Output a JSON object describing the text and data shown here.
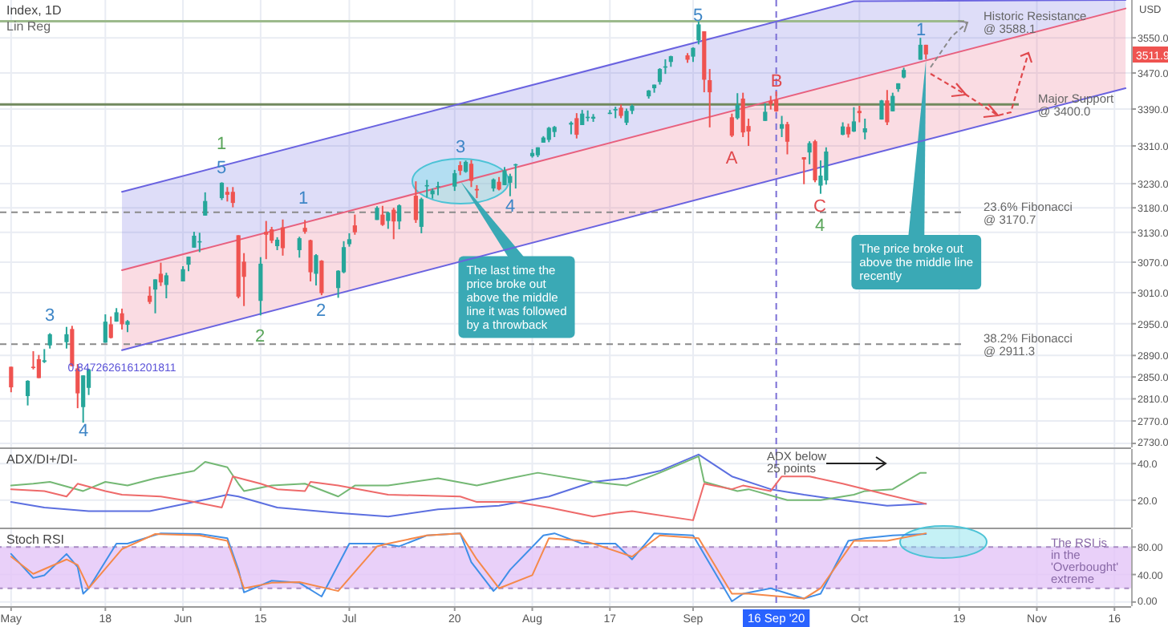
{
  "chart_data": [
    {
      "type": "candlestick",
      "title": "Index, 1D",
      "ylabel": "USD",
      "log": true,
      "grid": true,
      "tick_labels": "y",
      "xlim": [
        "2020-04-29",
        "2020-11-19"
      ],
      "xticks": [
        {
          "value": "2020-05-01",
          "label": null
        },
        {
          "value": "2020-05-18",
          "label": null
        },
        {
          "value": "2020-06-01",
          "label": null
        },
        {
          "value": "2020-06-15",
          "label": null
        },
        {
          "value": "2020-07-01",
          "label": null
        },
        {
          "value": "2020-07-20",
          "label": null
        },
        {
          "value": "2020-08-03",
          "label": null
        },
        {
          "value": "2020-08-17",
          "label": null
        },
        {
          "value": "2020-09-01",
          "label": null
        },
        {
          "value": "2020-10-01",
          "label": null
        },
        {
          "value": "2020-10-19",
          "label": null
        },
        {
          "value": "2020-11-02",
          "label": null
        },
        {
          "value": "2020-11-16",
          "label": null
        }
      ],
      "ylim": [
        2723,
        3638
      ],
      "yticks": [
        {
          "value": 2730,
          "label": "2730.0"
        },
        {
          "value": 2770,
          "label": "2770.0"
        },
        {
          "value": 2810,
          "label": "2810.0"
        },
        {
          "value": 2850,
          "label": "2850.0"
        },
        {
          "value": 2890,
          "label": "2890.0"
        },
        {
          "value": 2950,
          "label": "2950.0"
        },
        {
          "value": 3010,
          "label": "3010.0"
        },
        {
          "value": 3070,
          "label": "3070.0"
        },
        {
          "value": 3130,
          "label": "3130.0"
        },
        {
          "value": 3180,
          "label": "3180.0"
        },
        {
          "value": 3230,
          "label": "3230.0"
        },
        {
          "value": 3310,
          "label": "3310.0"
        },
        {
          "value": 3390,
          "label": "3390.0"
        },
        {
          "value": 3470,
          "label": "3470.0"
        },
        {
          "value": 3550,
          "label": "3550.0"
        }
      ],
      "x": [
        "2020-05-01",
        "2020-05-04",
        "2020-05-05",
        "2020-05-06",
        "2020-05-07",
        "2020-05-08",
        "2020-05-11",
        "2020-05-12",
        "2020-05-13",
        "2020-05-14",
        "2020-05-15",
        "2020-05-18",
        "2020-05-19",
        "2020-05-20",
        "2020-05-21",
        "2020-05-22",
        "2020-05-26",
        "2020-05-27",
        "2020-05-28",
        "2020-05-29",
        "2020-06-01",
        "2020-06-02",
        "2020-06-03",
        "2020-06-04",
        "2020-06-05",
        "2020-06-08",
        "2020-06-09",
        "2020-06-10",
        "2020-06-11",
        "2020-06-12",
        "2020-06-15",
        "2020-06-16",
        "2020-06-17",
        "2020-06-18",
        "2020-06-19",
        "2020-06-22",
        "2020-06-23",
        "2020-06-24",
        "2020-06-25",
        "2020-06-26",
        "2020-06-29",
        "2020-06-30",
        "2020-07-01",
        "2020-07-02",
        "2020-07-06",
        "2020-07-07",
        "2020-07-08",
        "2020-07-09",
        "2020-07-10",
        "2020-07-13",
        "2020-07-14",
        "2020-07-15",
        "2020-07-16",
        "2020-07-17",
        "2020-07-20",
        "2020-07-21",
        "2020-07-22",
        "2020-07-23",
        "2020-07-24",
        "2020-07-27",
        "2020-07-28",
        "2020-07-29",
        "2020-07-30",
        "2020-07-31",
        "2020-08-03",
        "2020-08-04",
        "2020-08-05",
        "2020-08-06",
        "2020-08-07",
        "2020-08-10",
        "2020-08-11",
        "2020-08-12",
        "2020-08-13",
        "2020-08-14",
        "2020-08-17",
        "2020-08-18",
        "2020-08-19",
        "2020-08-20",
        "2020-08-21",
        "2020-08-24",
        "2020-08-25",
        "2020-08-26",
        "2020-08-27",
        "2020-08-28",
        "2020-08-31",
        "2020-09-01",
        "2020-09-02",
        "2020-09-03",
        "2020-09-04",
        "2020-09-08",
        "2020-09-09",
        "2020-09-10",
        "2020-09-11",
        "2020-09-14",
        "2020-09-15",
        "2020-09-16",
        "2020-09-17",
        "2020-09-18",
        "2020-09-21",
        "2020-09-22",
        "2020-09-23",
        "2020-09-24",
        "2020-09-25",
        "2020-09-28",
        "2020-09-29",
        "2020-09-30",
        "2020-10-01",
        "2020-10-02",
        "2020-10-05",
        "2020-10-06",
        "2020-10-07",
        "2020-10-08",
        "2020-10-09",
        "2020-10-12",
        "2020-10-13"
      ],
      "ohlc": [
        [
          2869,
          2869,
          2822,
          2831
        ],
        [
          2815,
          2844,
          2798,
          2843
        ],
        [
          2869,
          2898,
          2864,
          2868
        ],
        [
          2883,
          2891,
          2848,
          2848
        ],
        [
          2878,
          2902,
          2876,
          2881
        ],
        [
          2909,
          2932,
          2903,
          2930
        ],
        [
          2915,
          2944,
          2903,
          2930
        ],
        [
          2940,
          2946,
          2870,
          2870
        ],
        [
          2866,
          2874,
          2793,
          2820
        ],
        [
          2795,
          2853,
          2767,
          2853
        ],
        [
          2830,
          2865,
          2817,
          2864
        ],
        [
          2914,
          2968,
          2914,
          2954
        ],
        [
          2949,
          2964,
          2922,
          2923
        ],
        [
          2954,
          2980,
          2954,
          2972
        ],
        [
          2970,
          2979,
          2939,
          2949
        ],
        [
          2948,
          2957,
          2934,
          2955
        ],
        [
          3004,
          3022,
          2988,
          2992
        ],
        [
          3016,
          3036,
          2970,
          3036
        ],
        [
          3047,
          3069,
          3023,
          3030
        ],
        [
          3025,
          3049,
          2999,
          3044
        ],
        [
          3032,
          3062,
          3032,
          3056
        ],
        [
          3065,
          3081,
          3052,
          3081
        ],
        [
          3099,
          3131,
          3099,
          3123
        ],
        [
          3112,
          3129,
          3090,
          3112
        ],
        [
          3164,
          3212,
          3164,
          3194
        ],
        [
          3200,
          3233,
          3196,
          3232
        ],
        [
          3213,
          3223,
          3193,
          3207
        ],
        [
          3213,
          3223,
          3181,
          3190
        ],
        [
          3124,
          3124,
          2999,
          3002
        ],
        [
          3071,
          3088,
          2984,
          3041
        ],
        [
          2994,
          3080,
          2966,
          3067
        ],
        [
          3131,
          3153,
          3076,
          3125
        ],
        [
          3136,
          3141,
          3108,
          3113
        ],
        [
          3102,
          3120,
          3094,
          3115
        ],
        [
          3140,
          3156,
          3083,
          3098
        ],
        [
          3094,
          3121,
          3079,
          3118
        ],
        [
          3139,
          3155,
          3127,
          3131
        ],
        [
          3114,
          3115,
          3032,
          3050
        ],
        [
          3047,
          3086,
          3024,
          3084
        ],
        [
          3073,
          3074,
          3005,
          3009
        ],
        [
          3019,
          3054,
          3000,
          3053
        ],
        [
          3050,
          3112,
          3048,
          3100
        ],
        [
          3106,
          3128,
          3101,
          3116
        ],
        [
          3144,
          3166,
          3125,
          3130
        ],
        [
          3155,
          3183,
          3155,
          3180
        ],
        [
          3166,
          3184,
          3143,
          3145
        ],
        [
          3153,
          3172,
          3137,
          3170
        ],
        [
          3176,
          3180,
          3116,
          3152
        ],
        [
          3152,
          3187,
          3136,
          3185
        ],
        [
          3205,
          3235,
          3149,
          3155
        ],
        [
          3141,
          3201,
          3128,
          3198
        ],
        [
          3226,
          3238,
          3201,
          3227
        ],
        [
          3208,
          3220,
          3199,
          3216
        ],
        [
          3224,
          3234,
          3206,
          3225
        ],
        [
          3224,
          3259,
          3215,
          3252
        ],
        [
          3269,
          3277,
          3248,
          3257
        ],
        [
          3255,
          3279,
          3253,
          3276
        ],
        [
          3272,
          3280,
          3223,
          3236
        ],
        [
          3219,
          3227,
          3200,
          3216
        ],
        [
          3220,
          3241,
          3214,
          3239
        ],
        [
          3234,
          3244,
          3216,
          3218
        ],
        [
          3227,
          3265,
          3227,
          3258
        ],
        [
          3232,
          3251,
          3204,
          3246
        ],
        [
          3270,
          3272,
          3220,
          3271
        ],
        [
          3288,
          3303,
          3285,
          3295
        ],
        [
          3290,
          3307,
          3286,
          3307
        ],
        [
          3317,
          3331,
          3317,
          3328
        ],
        [
          3323,
          3351,
          3318,
          3349
        ],
        [
          3340,
          3353,
          3329,
          3351
        ],
        [
          3356,
          3363,
          3335,
          3360
        ],
        [
          3370,
          3381,
          3326,
          3334
        ],
        [
          3355,
          3388,
          3355,
          3380
        ],
        [
          3373,
          3387,
          3363,
          3373
        ],
        [
          3369,
          3379,
          3362,
          3373
        ],
        [
          3381,
          3388,
          3379,
          3382
        ],
        [
          3387,
          3395,
          3370,
          3390
        ],
        [
          3393,
          3400,
          3370,
          3375
        ],
        [
          3360,
          3391,
          3355,
          3386
        ],
        [
          3386,
          3400,
          3379,
          3397
        ],
        [
          3418,
          3432,
          3413,
          3431
        ],
        [
          3436,
          3444,
          3426,
          3444
        ],
        [
          3450,
          3481,
          3444,
          3479
        ],
        [
          3485,
          3501,
          3468,
          3485
        ],
        [
          3495,
          3509,
          3484,
          3508
        ],
        [
          3510,
          3515,
          3493,
          3500
        ],
        [
          3507,
          3528,
          3495,
          3527
        ],
        [
          3544,
          3588,
          3535,
          3581
        ],
        [
          3565,
          3565,
          3427,
          3455
        ],
        [
          3454,
          3479,
          3350,
          3427
        ],
        [
          3372,
          3380,
          3329,
          3332
        ],
        [
          3370,
          3425,
          3367,
          3399
        ],
        [
          3413,
          3426,
          3329,
          3339
        ],
        [
          3353,
          3369,
          3310,
          3341
        ],
        [
          3364,
          3403,
          3364,
          3384
        ],
        [
          3408,
          3419,
          3389,
          3401
        ],
        [
          3411,
          3429,
          3384,
          3385
        ],
        [
          3347,
          3375,
          3329,
          3357
        ],
        [
          3357,
          3362,
          3292,
          3319
        ],
        [
          3286,
          3286,
          3229,
          3281
        ],
        [
          3296,
          3320,
          3271,
          3316
        ],
        [
          3320,
          3323,
          3233,
          3237
        ],
        [
          3226,
          3279,
          3209,
          3247
        ],
        [
          3237,
          3307,
          3228,
          3298
        ],
        [
          3334,
          3361,
          3333,
          3352
        ],
        [
          3351,
          3358,
          3328,
          3335
        ],
        [
          3341,
          3394,
          3340,
          3363
        ],
        [
          3386,
          3397,
          3361,
          3381
        ],
        [
          3339,
          3369,
          3324,
          3348
        ],
        [
          3367,
          3410,
          3367,
          3409
        ],
        [
          3409,
          3432,
          3355,
          3361
        ],
        [
          3385,
          3426,
          3385,
          3419
        ],
        [
          3434,
          3447,
          3428,
          3447
        ],
        [
          3460,
          3482,
          3458,
          3477
        ],
        [
          3500,
          3550,
          3500,
          3534
        ],
        [
          3534,
          3534,
          3501,
          3512
        ]
      ],
      "series": [
        {
          "type": "line",
          "color": "#6a63e0",
          "x": [
            "2020-05-21",
            "2020-09-30",
            "2020-11-18"
          ],
          "values": [
            3213,
            3635,
            3638
          ],
          "lower": [
            3054,
            3456,
            3618
          ],
          "upper": [
            3213,
            3635,
            3638
          ]
        },
        {
          "type": "line",
          "color": "#e8607e",
          "x": [
            "2020-05-21",
            "2020-09-30",
            "2020-11-18"
          ],
          "values": [
            3054,
            3456,
            3618
          ],
          "lower": [
            2900,
            3283,
            3436
          ],
          "upper": [
            3054,
            3456,
            3618
          ]
        },
        {
          "type": "line",
          "color": "#6a63e0",
          "x": [
            "2020-05-21",
            "2020-09-30",
            "2020-11-18"
          ],
          "values": [
            2900,
            3283,
            3436
          ]
        }
      ],
      "ref_lines": [
        {
          "axis": "y",
          "value": 3588.1,
          "label": "Historic Resistance\n@ 3588.1",
          "color": "#9cba8c",
          "line_style": "solid"
        },
        {
          "axis": "y",
          "value": 3400.0,
          "label": "Major Support\n@ 3400.0",
          "color": "#71895e",
          "line_style": "solid"
        },
        {
          "axis": "y",
          "value": 3170.7,
          "label": "23.6% Fibonacci\n@ 3170.7",
          "color": "#8a8a8a",
          "line_style": "dashed"
        },
        {
          "axis": "y",
          "value": 2911.3,
          "label": "38.2% Fibonacci\n@ 2911.3",
          "color": "#8a8a8a",
          "line_style": "dashed"
        },
        {
          "axis": "x",
          "value": "2020-09-16",
          "color": "#7b6fd6",
          "line_style": "dashed"
        }
      ],
      "annotations": [
        "Lin Reg",
        {
          "text": "0.8472626161201811",
          "x": "2020-05-21",
          "y": 2900
        },
        "3",
        "4",
        "5",
        "1",
        "2",
        "1",
        "2",
        "3",
        "4",
        "5",
        "A",
        "B",
        "C",
        "4",
        "1",
        "The last time the\nprice broke out\nabove the middle\nline it was followed\nby a throwback",
        {
          "text": "The price broke out\nabove the middle line\nrecently",
          "x": "2020-10-13",
          "y": 3500
        },
        "3511.9"
      ]
    },
    {
      "type": "line",
      "title": "ADX/DI+/DI-",
      "grid": true,
      "tick_labels": "y",
      "xlim": [
        "2020-04-29",
        "2020-11-19"
      ],
      "xticks": [
        {
          "value": "2020-05-01",
          "label": null
        },
        {
          "value": "2020-05-18",
          "label": null
        },
        {
          "value": "2020-06-01",
          "label": null
        },
        {
          "value": "2020-06-15",
          "label": null
        },
        {
          "value": "2020-07-01",
          "label": null
        },
        {
          "value": "2020-07-20",
          "label": null
        },
        {
          "value": "2020-08-03",
          "label": null
        },
        {
          "value": "2020-08-17",
          "label": null
        },
        {
          "value": "2020-09-01",
          "label": null
        },
        {
          "value": "2020-10-01",
          "label": null
        },
        {
          "value": "2020-10-19",
          "label": null
        },
        {
          "value": "2020-11-02",
          "label": null
        },
        {
          "value": "2020-11-16",
          "label": null
        }
      ],
      "ylim": [
        5,
        48
      ],
      "yticks": [
        {
          "value": 20,
          "label": "20.0"
        },
        {
          "value": 40,
          "label": "40.0"
        }
      ],
      "series": [
        {
          "color": "#5c6fe0",
          "x": [
            "2020-05-01",
            "2020-05-07",
            "2020-05-15",
            "2020-05-26",
            "2020-06-03",
            "2020-06-09",
            "2020-06-11",
            "2020-06-18",
            "2020-06-29",
            "2020-07-08",
            "2020-07-17",
            "2020-07-28",
            "2020-08-06",
            "2020-08-14",
            "2020-08-20",
            "2020-08-26",
            "2020-09-02",
            "2020-09-08",
            "2020-09-15",
            "2020-09-21",
            "2020-09-28",
            "2020-10-06",
            "2020-10-13"
          ],
          "values": [
            19,
            16,
            14,
            14,
            19,
            23,
            22,
            16,
            13,
            11,
            15,
            17,
            22,
            30,
            32,
            36,
            45,
            33,
            26,
            23,
            20,
            17,
            18
          ]
        },
        {
          "color": "#74b874",
          "x": [
            "2020-05-01",
            "2020-05-05",
            "2020-05-08",
            "2020-05-14",
            "2020-05-18",
            "2020-05-22",
            "2020-05-27",
            "2020-06-03",
            "2020-06-05",
            "2020-06-09",
            "2020-06-11",
            "2020-06-12",
            "2020-06-17",
            "2020-06-23",
            "2020-06-29",
            "2020-07-02",
            "2020-07-08",
            "2020-07-17",
            "2020-07-24",
            "2020-07-30",
            "2020-08-04",
            "2020-08-14",
            "2020-08-20",
            "2020-08-26",
            "2020-09-02",
            "2020-09-03",
            "2020-09-09",
            "2020-09-11",
            "2020-09-18",
            "2020-09-24",
            "2020-09-30",
            "2020-10-02",
            "2020-10-07",
            "2020-10-12",
            "2020-10-13"
          ],
          "values": [
            28,
            29,
            30,
            25,
            30,
            28,
            32,
            36,
            41,
            38,
            29,
            25,
            28,
            29,
            22,
            28,
            28,
            32,
            28,
            32,
            35,
            30,
            28,
            35,
            44,
            30,
            25,
            26,
            20,
            20,
            23,
            25,
            26,
            35,
            35
          ]
        },
        {
          "color": "#ee6a6a",
          "x": [
            "2020-05-01",
            "2020-05-07",
            "2020-05-11",
            "2020-05-13",
            "2020-05-18",
            "2020-05-21",
            "2020-05-28",
            "2020-06-03",
            "2020-06-08",
            "2020-06-10",
            "2020-06-15",
            "2020-06-18",
            "2020-06-23",
            "2020-06-24",
            "2020-06-29",
            "2020-07-08",
            "2020-07-21",
            "2020-07-24",
            "2020-07-31",
            "2020-08-06",
            "2020-08-14",
            "2020-08-18",
            "2020-08-21",
            "2020-09-01",
            "2020-09-03",
            "2020-09-08",
            "2020-09-10",
            "2020-09-15",
            "2020-09-17",
            "2020-09-22",
            "2020-09-28",
            "2020-10-06",
            "2020-10-13"
          ],
          "values": [
            26,
            25,
            22,
            29,
            25,
            23,
            22,
            19,
            16,
            33,
            29,
            26,
            25,
            30,
            28,
            23,
            22,
            19,
            19,
            16,
            11,
            13,
            14,
            9,
            29,
            26,
            28,
            25,
            33,
            33,
            29,
            23,
            18
          ]
        }
      ],
      "ref_lines": [
        {
          "axis": "x",
          "value": "2020-09-16",
          "color": "#7b6fd6",
          "line_style": "dashed"
        }
      ],
      "annotations": [
        "ADX below\n25 points"
      ]
    },
    {
      "type": "line",
      "title": "Stoch RSI",
      "grid": true,
      "xlim": [
        "2020-04-29",
        "2020-11-19"
      ],
      "xticks": [
        {
          "value": "2020-05-01",
          "label": "May"
        },
        {
          "value": "2020-05-18",
          "label": "18"
        },
        {
          "value": "2020-06-01",
          "label": "Jun"
        },
        {
          "value": "2020-06-15",
          "label": "15"
        },
        {
          "value": "2020-07-01",
          "label": "Jul"
        },
        {
          "value": "2020-07-20",
          "label": "20"
        },
        {
          "value": "2020-08-03",
          "label": "Aug"
        },
        {
          "value": "2020-08-17",
          "label": "17"
        },
        {
          "value": "2020-09-01",
          "label": "Sep"
        },
        {
          "value": "2020-10-01",
          "label": "Oct"
        },
        {
          "value": "2020-10-19",
          "label": "19"
        },
        {
          "value": "2020-11-02",
          "label": "Nov"
        },
        {
          "value": "2020-11-16",
          "label": "16"
        }
      ],
      "ylim": [
        -6,
        106
      ],
      "yticks": [
        {
          "value": 0,
          "label": "0.00"
        },
        {
          "value": 40,
          "label": "40.00"
        },
        {
          "value": 80,
          "label": "80.00"
        }
      ],
      "bands": [
        {
          "axis": "y",
          "from": 20,
          "to": 80,
          "color": "#e3c4f7"
        }
      ],
      "series": [
        {
          "color": "#3f8fe8",
          "x": [
            "2020-05-01",
            "2020-05-05",
            "2020-05-07",
            "2020-05-11",
            "2020-05-13",
            "2020-05-14",
            "2020-05-15",
            "2020-05-20",
            "2020-05-22",
            "2020-05-28",
            "2020-06-04",
            "2020-06-09",
            "2020-06-11",
            "2020-06-12",
            "2020-06-17",
            "2020-06-22",
            "2020-06-26",
            "2020-07-01",
            "2020-07-07",
            "2020-07-10",
            "2020-07-15",
            "2020-07-21",
            "2020-07-23",
            "2020-07-27",
            "2020-07-28",
            "2020-07-30",
            "2020-08-05",
            "2020-08-07",
            "2020-08-12",
            "2020-08-14",
            "2020-08-18",
            "2020-08-21",
            "2020-08-25",
            "2020-09-01",
            "2020-09-08",
            "2020-09-10",
            "2020-09-15",
            "2020-09-21",
            "2020-09-24",
            "2020-09-29",
            "2020-10-02",
            "2020-10-07",
            "2020-10-13"
          ],
          "values": [
            70,
            35,
            39,
            70,
            51,
            12,
            20,
            85,
            85,
            100,
            99,
            93,
            47,
            14,
            31,
            28,
            8,
            85,
            85,
            81,
            97,
            100,
            58,
            16,
            24,
            47,
            97,
            100,
            85,
            85,
            85,
            62,
            100,
            97,
            1,
            12,
            20,
            5,
            12,
            89,
            93,
            97,
            99
          ]
        },
        {
          "color": "#f5894a",
          "x": [
            "2020-05-01",
            "2020-05-05",
            "2020-05-11",
            "2020-05-13",
            "2020-05-15",
            "2020-05-21",
            "2020-05-27",
            "2020-06-04",
            "2020-06-09",
            "2020-06-12",
            "2020-06-17",
            "2020-06-22",
            "2020-06-29",
            "2020-07-06",
            "2020-07-08",
            "2020-07-15",
            "2020-07-21",
            "2020-07-24",
            "2020-07-28",
            "2020-08-03",
            "2020-08-06",
            "2020-08-12",
            "2020-08-14",
            "2020-08-21",
            "2020-08-26",
            "2020-09-02",
            "2020-09-08",
            "2020-09-11",
            "2020-09-21",
            "2020-09-24",
            "2020-09-30",
            "2020-10-06",
            "2020-10-13"
          ],
          "values": [
            66,
            41,
            62,
            54,
            20,
            77,
            99,
            97,
            89,
            20,
            28,
            29,
            16,
            81,
            85,
            97,
            100,
            62,
            20,
            39,
            93,
            89,
            85,
            66,
            97,
            93,
            12,
            12,
            5,
            20,
            89,
            89,
            100
          ]
        }
      ],
      "ref_lines": [
        {
          "axis": "x",
          "value": "2020-09-16",
          "label": "16 Sep '20",
          "color": "#7b6fd6",
          "line_style": "dashed"
        }
      ],
      "annotations": [
        "The RSI is\nin the\n'Overbought'\nextreme"
      ]
    }
  ]
}
